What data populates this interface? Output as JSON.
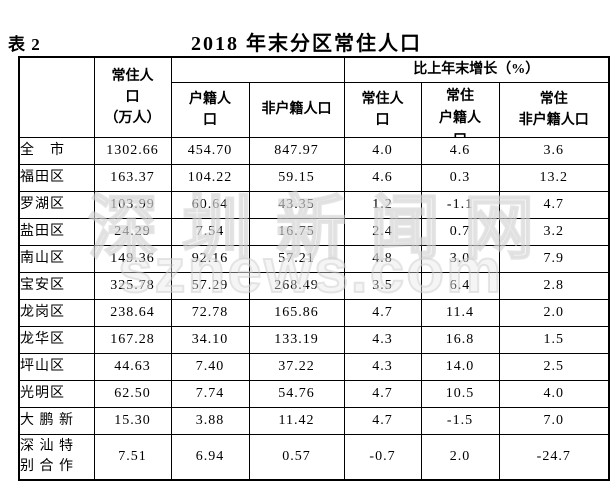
{
  "page": {
    "table_label": "表 2",
    "title": "2018 年末分区常住人口"
  },
  "watermark": {
    "line1": "深圳新闻网",
    "line2": "sznews.com"
  },
  "table": {
    "header": {
      "resident_pop": "常住人\n口\n（万人）",
      "hukou_pop": "户籍人\n口",
      "non_hukou_pop": "非户籍人口",
      "growth_group": "比上年末增长（%）",
      "growth_resident": "常住人\n口",
      "growth_hukou": "常住\n户籍人\n口",
      "growth_non_hukou": "常住\n非户籍人口"
    },
    "rows": [
      {
        "district": "全　市",
        "resident": "1302.66",
        "hukou": "454.70",
        "non_hukou": "847.97",
        "growth_resident": "4.0",
        "growth_hukou": "4.6",
        "growth_non_hukou": "3.6"
      },
      {
        "district": "福田区",
        "resident": "163.37",
        "hukou": "104.22",
        "non_hukou": "59.15",
        "growth_resident": "4.6",
        "growth_hukou": "0.3",
        "growth_non_hukou": "13.2"
      },
      {
        "district": "罗湖区",
        "resident": "103.99",
        "hukou": "60.64",
        "non_hukou": "43.35",
        "growth_resident": "1.2",
        "growth_hukou": "-1.1",
        "growth_non_hukou": "4.7"
      },
      {
        "district": "盐田区",
        "resident": "24.29",
        "hukou": "7.54",
        "non_hukou": "16.75",
        "growth_resident": "2.4",
        "growth_hukou": "0.7",
        "growth_non_hukou": "3.2"
      },
      {
        "district": "南山区",
        "resident": "149.36",
        "hukou": "92.16",
        "non_hukou": "57.21",
        "growth_resident": "4.8",
        "growth_hukou": "3.0",
        "growth_non_hukou": "7.9"
      },
      {
        "district": "宝安区",
        "resident": "325.78",
        "hukou": "57.29",
        "non_hukou": "268.49",
        "growth_resident": "3.5",
        "growth_hukou": "6.4",
        "growth_non_hukou": "2.8"
      },
      {
        "district": "龙岗区",
        "resident": "238.64",
        "hukou": "72.78",
        "non_hukou": "165.86",
        "growth_resident": "4.7",
        "growth_hukou": "11.4",
        "growth_non_hukou": "2.0"
      },
      {
        "district": "龙华区",
        "resident": "167.28",
        "hukou": "34.10",
        "non_hukou": "133.19",
        "growth_resident": "4.3",
        "growth_hukou": "16.8",
        "growth_non_hukou": "1.5"
      },
      {
        "district": "坪山区",
        "resident": "44.63",
        "hukou": "7.40",
        "non_hukou": "37.22",
        "growth_resident": "4.3",
        "growth_hukou": "14.0",
        "growth_non_hukou": "2.5"
      },
      {
        "district": "光明区",
        "resident": "62.50",
        "hukou": "7.74",
        "non_hukou": "54.76",
        "growth_resident": "4.7",
        "growth_hukou": "10.5",
        "growth_non_hukou": "4.0"
      },
      {
        "district": "大 鹏 新",
        "resident": "15.30",
        "hukou": "3.88",
        "non_hukou": "11.42",
        "growth_resident": "4.7",
        "growth_hukou": "-1.5",
        "growth_non_hukou": "7.0"
      },
      {
        "district": "深 汕 特\n别 合 作",
        "resident": "7.51",
        "hukou": "6.94",
        "non_hukou": "0.57",
        "growth_resident": "-0.7",
        "growth_hukou": "2.0",
        "growth_non_hukou": "-24.7"
      }
    ]
  }
}
